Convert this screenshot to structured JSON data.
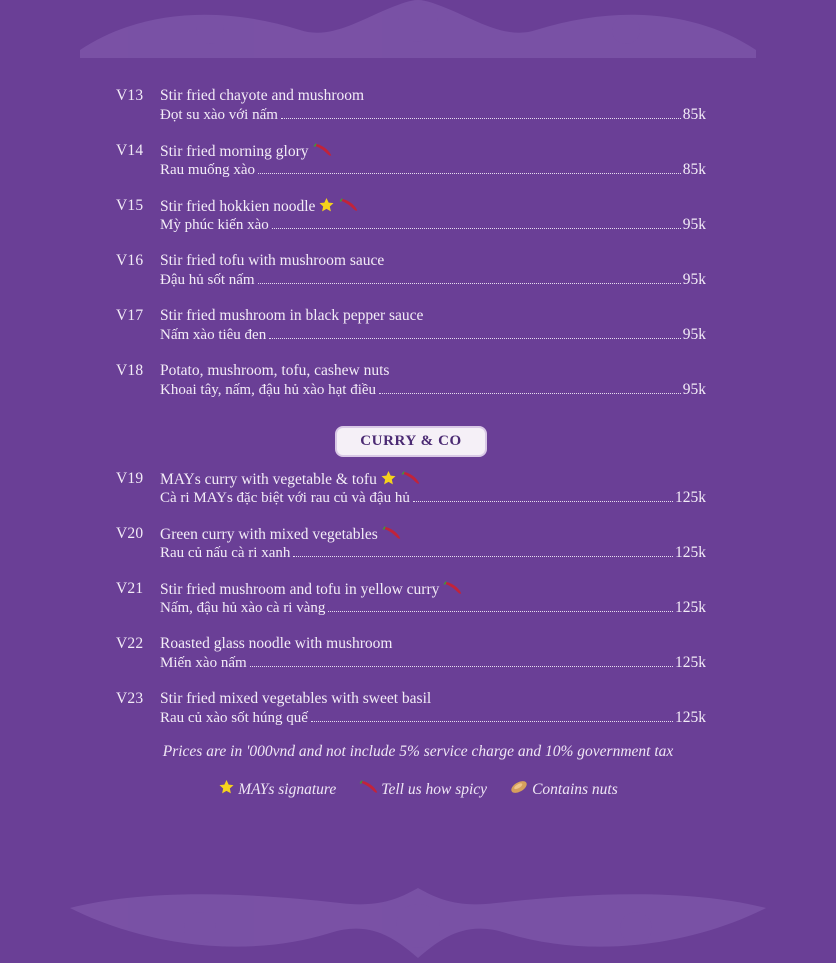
{
  "items_top": [
    {
      "code": "V13",
      "en": "Stir fried chayote and mushroom",
      "vi": "Đọt su xào với nấm",
      "price": "85k",
      "icons": []
    },
    {
      "code": "V14",
      "en": "Stir fried morning glory",
      "vi": "Rau muống xào",
      "price": "85k",
      "icons": [
        "chili-icon"
      ]
    },
    {
      "code": "V15",
      "en": "Stir fried hokkien noodle",
      "vi": "Mỳ phúc kiến xào",
      "price": "95k",
      "icons": [
        "star-icon",
        "chili-icon"
      ]
    },
    {
      "code": "V16",
      "en": "Stir fried tofu with mushroom sauce",
      "vi": "Đậu hủ sốt nấm",
      "price": "95k",
      "icons": []
    },
    {
      "code": "V17",
      "en": "Stir fried mushroom in black pepper sauce",
      "vi": "Nấm xào tiêu đen",
      "price": "95k",
      "icons": []
    },
    {
      "code": "V18",
      "en": "Potato, mushroom, tofu, cashew nuts",
      "vi": "Khoai tây, nấm, đậu hủ xào hạt điều",
      "price": "95k",
      "icons": []
    }
  ],
  "section_title": "CURRY & CO",
  "items_curry": [
    {
      "code": "V19",
      "en": "MAYs curry with vegetable & tofu",
      "vi": "Cà ri MAYs đặc biệt với rau củ và đậu hủ",
      "price": "125k",
      "icons": [
        "star-icon",
        "chili-icon"
      ]
    },
    {
      "code": "V20",
      "en": "Green curry with mixed vegetables",
      "vi": "Rau củ nấu cà ri xanh",
      "price": "125k",
      "icons": [
        "chili-icon"
      ]
    },
    {
      "code": "V21",
      "en": "Stir fried mushroom and tofu in yellow curry",
      "vi": "Nấm, đậu hủ xào cà ri vàng",
      "price": "125k",
      "icons": [
        "chili-icon"
      ]
    },
    {
      "code": "V22",
      "en": "Roasted glass noodle with mushroom",
      "vi": "Miến xào nấm",
      "price": "125k",
      "icons": []
    },
    {
      "code": "V23",
      "en": "Stir fried mixed vegetables with sweet basil",
      "vi": "Rau củ xào sốt húng quế",
      "price": "125k",
      "icons": []
    }
  ],
  "footnote": "Prices are in '000vnd and not include 5% service charge and 10% government tax",
  "legend": [
    {
      "icon": "star-icon",
      "label": "MAYs signature"
    },
    {
      "icon": "chili-icon",
      "label": "Tell us how spicy"
    },
    {
      "icon": "nut-icon",
      "label": "Contains nuts"
    }
  ],
  "colors": {
    "background": "#6a3f96",
    "ornament": "#7c55a8",
    "star": "#f5d21c",
    "chili": "#c2233a"
  }
}
